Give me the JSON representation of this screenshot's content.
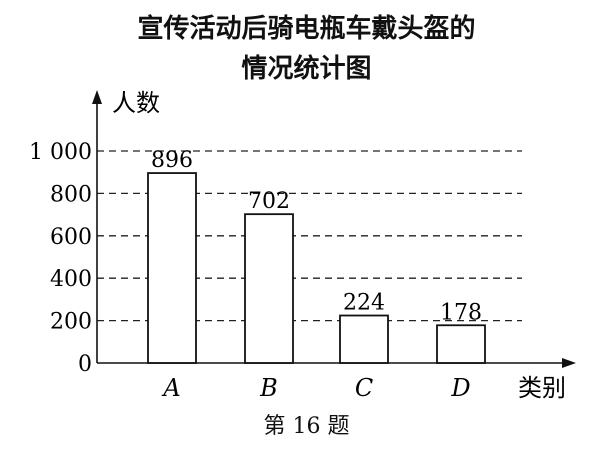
{
  "chart_data": {
    "type": "bar",
    "title": [
      "宣传活动后骑电瓶车戴头盔的",
      "情况统计图"
    ],
    "xlabel": "类别",
    "ylabel": "人数",
    "categories": [
      "A",
      "B",
      "C",
      "D"
    ],
    "values": [
      896,
      702,
      224,
      178
    ],
    "yticks": [
      0,
      200,
      400,
      600,
      800,
      1000
    ],
    "ytick_labels": [
      "0",
      "200",
      "400",
      "600",
      "800",
      "1 000"
    ],
    "ylim": [
      0,
      1000
    ],
    "grid": "dashed horizontal at y ticks",
    "bar_fill": "#ffffff",
    "bar_stroke": "#111111"
  },
  "caption": "第 16 题"
}
